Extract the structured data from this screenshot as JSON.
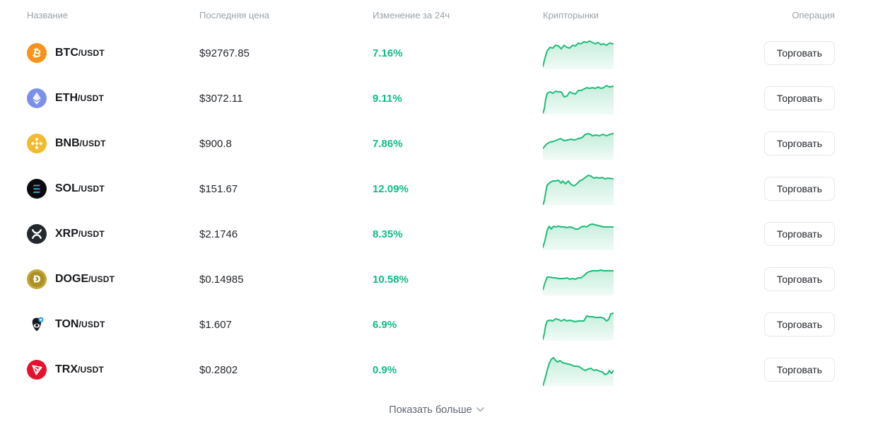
{
  "table": {
    "headers": {
      "name": "Название",
      "price": "Последняя цена",
      "change": "Изменение за 24ч",
      "markets": "Крипторынки",
      "action": "Операция"
    }
  },
  "action_label": "Торговать",
  "footer": {
    "show_more": "Показать больше"
  },
  "colors": {
    "positive": "#0cbd87",
    "spark_line": "#1fbc79",
    "spark_fill": "#1fbc79",
    "header_text": "#9aa2ab",
    "footer_text": "#5d6673",
    "button_border": "#e5e7ea",
    "btc": "#F7931A",
    "eth": "#7C8FEA",
    "bnb": "#F3BA2F",
    "sol": "#0B0B0F",
    "xrp": "#23292F",
    "doge": "#C3A634",
    "ton": "#17181c",
    "ton_badge": "#2F9BEA",
    "trx": "#E8112D"
  },
  "rows": [
    {
      "symbol": "BTC",
      "pair": "/USDT",
      "price": "$92767.85",
      "change": "7.16%",
      "icon": "btc-icon",
      "spark": [
        [
          0,
          42
        ],
        [
          3,
          30
        ],
        [
          6,
          20
        ],
        [
          10,
          15
        ],
        [
          14,
          16
        ],
        [
          18,
          12
        ],
        [
          22,
          13
        ],
        [
          26,
          17
        ],
        [
          30,
          12
        ],
        [
          34,
          15
        ],
        [
          38,
          16
        ],
        [
          42,
          12
        ],
        [
          46,
          13
        ],
        [
          50,
          9
        ],
        [
          54,
          10
        ],
        [
          58,
          7
        ],
        [
          62,
          8
        ],
        [
          66,
          6
        ],
        [
          70,
          8
        ],
        [
          74,
          10
        ],
        [
          78,
          8
        ],
        [
          82,
          11
        ],
        [
          86,
          10
        ],
        [
          90,
          12
        ],
        [
          94,
          9
        ],
        [
          100,
          10
        ]
      ]
    },
    {
      "symbol": "ETH",
      "pair": "/USDT",
      "price": "$3072.11",
      "change": "9.11%",
      "icon": "eth-icon",
      "spark": [
        [
          0,
          44
        ],
        [
          2,
          38
        ],
        [
          4,
          24
        ],
        [
          6,
          16
        ],
        [
          10,
          14
        ],
        [
          14,
          16
        ],
        [
          18,
          13
        ],
        [
          22,
          14
        ],
        [
          26,
          14
        ],
        [
          30,
          21
        ],
        [
          34,
          20
        ],
        [
          38,
          14
        ],
        [
          42,
          16
        ],
        [
          46,
          17
        ],
        [
          50,
          12
        ],
        [
          54,
          12
        ],
        [
          58,
          10
        ],
        [
          62,
          8
        ],
        [
          66,
          9
        ],
        [
          70,
          8
        ],
        [
          74,
          9
        ],
        [
          78,
          7
        ],
        [
          82,
          9
        ],
        [
          86,
          8
        ],
        [
          90,
          5
        ],
        [
          94,
          7
        ],
        [
          100,
          6
        ]
      ]
    },
    {
      "symbol": "BNB",
      "pair": "/USDT",
      "price": "$900.8",
      "change": "7.86%",
      "icon": "bnb-icon",
      "spark": [
        [
          0,
          30
        ],
        [
          5,
          24
        ],
        [
          10,
          21
        ],
        [
          15,
          20
        ],
        [
          20,
          18
        ],
        [
          25,
          16
        ],
        [
          30,
          19
        ],
        [
          35,
          18
        ],
        [
          40,
          17
        ],
        [
          45,
          18
        ],
        [
          50,
          16
        ],
        [
          55,
          15
        ],
        [
          60,
          10
        ],
        [
          65,
          9
        ],
        [
          70,
          12
        ],
        [
          75,
          11
        ],
        [
          80,
          12
        ],
        [
          85,
          10
        ],
        [
          90,
          12
        ],
        [
          95,
          10
        ],
        [
          100,
          9
        ]
      ]
    },
    {
      "symbol": "SOL",
      "pair": "/USDT",
      "price": "$151.67",
      "change": "12.09%",
      "icon": "sol-icon",
      "spark": [
        [
          0,
          46
        ],
        [
          2,
          40
        ],
        [
          4,
          28
        ],
        [
          6,
          18
        ],
        [
          10,
          14
        ],
        [
          14,
          12
        ],
        [
          18,
          12
        ],
        [
          22,
          11
        ],
        [
          26,
          15
        ],
        [
          28,
          12
        ],
        [
          32,
          16
        ],
        [
          36,
          12
        ],
        [
          40,
          17
        ],
        [
          44,
          19
        ],
        [
          48,
          16
        ],
        [
          52,
          12
        ],
        [
          56,
          10
        ],
        [
          60,
          7
        ],
        [
          64,
          4
        ],
        [
          68,
          5
        ],
        [
          72,
          8
        ],
        [
          76,
          7
        ],
        [
          80,
          8
        ],
        [
          84,
          7
        ],
        [
          88,
          9
        ],
        [
          92,
          8
        ],
        [
          100,
          9
        ]
      ]
    },
    {
      "symbol": "XRP",
      "pair": "/USDT",
      "price": "$2.1746",
      "change": "8.35%",
      "icon": "xrp-icon",
      "spark": [
        [
          0,
          42
        ],
        [
          3,
          32
        ],
        [
          6,
          18
        ],
        [
          9,
          12
        ],
        [
          12,
          16
        ],
        [
          15,
          12
        ],
        [
          18,
          13
        ],
        [
          22,
          12
        ],
        [
          26,
          13
        ],
        [
          30,
          13
        ],
        [
          34,
          14
        ],
        [
          38,
          13
        ],
        [
          42,
          14
        ],
        [
          46,
          16
        ],
        [
          50,
          16
        ],
        [
          54,
          13
        ],
        [
          58,
          12
        ],
        [
          62,
          13
        ],
        [
          66,
          10
        ],
        [
          70,
          9
        ],
        [
          74,
          10
        ],
        [
          78,
          11
        ],
        [
          82,
          12
        ],
        [
          86,
          13
        ],
        [
          90,
          13
        ],
        [
          100,
          13
        ]
      ]
    },
    {
      "symbol": "DOGE",
      "pair": "/USDT",
      "price": "$0.14985",
      "change": "10.58%",
      "icon": "doge-icon",
      "spark": [
        [
          0,
          38
        ],
        [
          3,
          28
        ],
        [
          6,
          20
        ],
        [
          10,
          20
        ],
        [
          14,
          21
        ],
        [
          18,
          21
        ],
        [
          22,
          22
        ],
        [
          26,
          22
        ],
        [
          30,
          22
        ],
        [
          34,
          21
        ],
        [
          38,
          23
        ],
        [
          42,
          22
        ],
        [
          46,
          23
        ],
        [
          50,
          21
        ],
        [
          54,
          21
        ],
        [
          58,
          18
        ],
        [
          62,
          14
        ],
        [
          66,
          12
        ],
        [
          70,
          11
        ],
        [
          74,
          11
        ],
        [
          78,
          11
        ],
        [
          82,
          10
        ],
        [
          86,
          11
        ],
        [
          90,
          11
        ],
        [
          100,
          11
        ]
      ]
    },
    {
      "symbol": "TON",
      "pair": "/USDT",
      "price": "$1.607",
      "change": "6.9%",
      "icon": "ton-icon",
      "spark": [
        [
          0,
          44
        ],
        [
          2,
          36
        ],
        [
          4,
          24
        ],
        [
          6,
          18
        ],
        [
          10,
          17
        ],
        [
          14,
          18
        ],
        [
          18,
          15
        ],
        [
          22,
          16
        ],
        [
          26,
          18
        ],
        [
          30,
          16
        ],
        [
          34,
          18
        ],
        [
          38,
          17
        ],
        [
          42,
          18
        ],
        [
          46,
          19
        ],
        [
          50,
          18
        ],
        [
          54,
          18
        ],
        [
          58,
          18
        ],
        [
          62,
          11
        ],
        [
          66,
          12
        ],
        [
          70,
          12
        ],
        [
          74,
          13
        ],
        [
          78,
          13
        ],
        [
          82,
          13
        ],
        [
          86,
          14
        ],
        [
          90,
          18
        ],
        [
          93,
          16
        ],
        [
          96,
          8
        ],
        [
          100,
          7
        ]
      ]
    },
    {
      "symbol": "TRX",
      "pair": "/USDT",
      "price": "$0.2802",
      "change": "0.9%",
      "icon": "trx-icon",
      "spark": [
        [
          0,
          46
        ],
        [
          3,
          36
        ],
        [
          6,
          24
        ],
        [
          9,
          14
        ],
        [
          12,
          8
        ],
        [
          15,
          6
        ],
        [
          18,
          10
        ],
        [
          21,
          12
        ],
        [
          24,
          10
        ],
        [
          28,
          13
        ],
        [
          32,
          14
        ],
        [
          36,
          15
        ],
        [
          40,
          16
        ],
        [
          44,
          18
        ],
        [
          48,
          18
        ],
        [
          52,
          19
        ],
        [
          56,
          22
        ],
        [
          60,
          24
        ],
        [
          64,
          22
        ],
        [
          68,
          21
        ],
        [
          72,
          24
        ],
        [
          76,
          23
        ],
        [
          80,
          25
        ],
        [
          84,
          26
        ],
        [
          88,
          30
        ],
        [
          92,
          28
        ],
        [
          94,
          24
        ],
        [
          97,
          28
        ],
        [
          100,
          24
        ]
      ]
    }
  ]
}
